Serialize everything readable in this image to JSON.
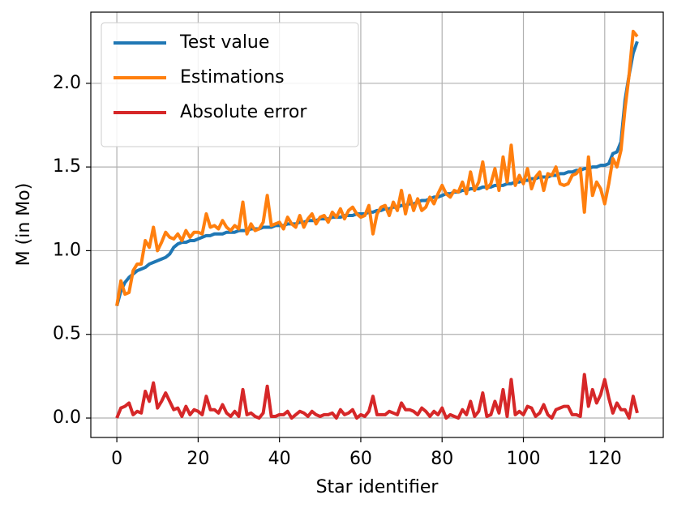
{
  "chart_data": {
    "type": "line",
    "xlabel": "Star identifier",
    "ylabel": "M (in Mo)",
    "x": [
      0,
      1,
      2,
      3,
      4,
      5,
      6,
      7,
      8,
      9,
      10,
      11,
      12,
      13,
      14,
      15,
      16,
      17,
      18,
      19,
      20,
      21,
      22,
      23,
      24,
      25,
      26,
      27,
      28,
      29,
      30,
      31,
      32,
      33,
      34,
      35,
      36,
      37,
      38,
      39,
      40,
      41,
      42,
      43,
      44,
      45,
      46,
      47,
      48,
      49,
      50,
      51,
      52,
      53,
      54,
      55,
      56,
      57,
      58,
      59,
      60,
      61,
      62,
      63,
      64,
      65,
      66,
      67,
      68,
      69,
      70,
      71,
      72,
      73,
      74,
      75,
      76,
      77,
      78,
      79,
      80,
      81,
      82,
      83,
      84,
      85,
      86,
      87,
      88,
      89,
      90,
      91,
      92,
      93,
      94,
      95,
      96,
      97,
      98,
      99,
      100,
      101,
      102,
      103,
      104,
      105,
      106,
      107,
      108,
      109,
      110,
      111,
      112,
      113,
      114,
      115,
      116,
      117,
      118,
      119,
      120,
      121,
      122,
      123,
      124,
      125,
      126,
      127,
      128
    ],
    "series": [
      {
        "name": "Test value",
        "color": "#1f77b4",
        "values": [
          0.67,
          0.76,
          0.81,
          0.84,
          0.86,
          0.88,
          0.89,
          0.9,
          0.92,
          0.93,
          0.94,
          0.95,
          0.96,
          0.98,
          1.02,
          1.04,
          1.05,
          1.05,
          1.06,
          1.06,
          1.07,
          1.08,
          1.09,
          1.09,
          1.1,
          1.1,
          1.1,
          1.11,
          1.11,
          1.11,
          1.12,
          1.12,
          1.12,
          1.13,
          1.13,
          1.13,
          1.14,
          1.14,
          1.14,
          1.15,
          1.15,
          1.15,
          1.16,
          1.16,
          1.16,
          1.17,
          1.17,
          1.18,
          1.18,
          1.18,
          1.19,
          1.19,
          1.19,
          1.2,
          1.2,
          1.2,
          1.21,
          1.21,
          1.21,
          1.22,
          1.22,
          1.22,
          1.23,
          1.23,
          1.24,
          1.24,
          1.25,
          1.25,
          1.26,
          1.26,
          1.27,
          1.27,
          1.28,
          1.28,
          1.29,
          1.3,
          1.3,
          1.31,
          1.32,
          1.32,
          1.33,
          1.34,
          1.34,
          1.35,
          1.35,
          1.36,
          1.36,
          1.37,
          1.37,
          1.37,
          1.38,
          1.38,
          1.38,
          1.39,
          1.39,
          1.39,
          1.4,
          1.4,
          1.41,
          1.41,
          1.42,
          1.42,
          1.43,
          1.43,
          1.44,
          1.44,
          1.44,
          1.45,
          1.45,
          1.46,
          1.46,
          1.47,
          1.47,
          1.48,
          1.48,
          1.49,
          1.49,
          1.5,
          1.5,
          1.51,
          1.51,
          1.52,
          1.58,
          1.59,
          1.65,
          1.9,
          2.05,
          2.18,
          2.25
        ]
      },
      {
        "name": "Estimations",
        "color": "#ff7f0e",
        "values": [
          0.67,
          0.82,
          0.74,
          0.75,
          0.88,
          0.92,
          0.92,
          1.06,
          1.02,
          1.14,
          1.0,
          1.05,
          1.11,
          1.08,
          1.07,
          1.1,
          1.06,
          1.12,
          1.08,
          1.11,
          1.11,
          1.1,
          1.22,
          1.14,
          1.15,
          1.13,
          1.18,
          1.14,
          1.12,
          1.15,
          1.13,
          1.29,
          1.1,
          1.16,
          1.12,
          1.13,
          1.17,
          1.33,
          1.15,
          1.16,
          1.17,
          1.13,
          1.2,
          1.16,
          1.14,
          1.21,
          1.14,
          1.19,
          1.22,
          1.16,
          1.2,
          1.21,
          1.17,
          1.23,
          1.2,
          1.25,
          1.19,
          1.24,
          1.26,
          1.22,
          1.2,
          1.21,
          1.27,
          1.1,
          1.22,
          1.26,
          1.27,
          1.21,
          1.29,
          1.24,
          1.36,
          1.22,
          1.33,
          1.24,
          1.31,
          1.24,
          1.26,
          1.32,
          1.28,
          1.34,
          1.39,
          1.34,
          1.32,
          1.36,
          1.35,
          1.41,
          1.34,
          1.47,
          1.36,
          1.41,
          1.53,
          1.37,
          1.4,
          1.49,
          1.36,
          1.56,
          1.41,
          1.63,
          1.39,
          1.45,
          1.4,
          1.49,
          1.37,
          1.44,
          1.47,
          1.36,
          1.46,
          1.45,
          1.5,
          1.4,
          1.39,
          1.4,
          1.45,
          1.46,
          1.49,
          1.23,
          1.56,
          1.33,
          1.41,
          1.37,
          1.28,
          1.4,
          1.55,
          1.5,
          1.6,
          1.85,
          2.05,
          2.31,
          2.28
        ]
      },
      {
        "name": "Absolute error",
        "color": "#d62728",
        "values": [
          0.0,
          0.06,
          0.07,
          0.09,
          0.02,
          0.04,
          0.03,
          0.16,
          0.1,
          0.21,
          0.06,
          0.1,
          0.15,
          0.1,
          0.05,
          0.06,
          0.01,
          0.07,
          0.02,
          0.05,
          0.04,
          0.02,
          0.13,
          0.05,
          0.05,
          0.03,
          0.08,
          0.03,
          0.01,
          0.04,
          0.01,
          0.17,
          0.02,
          0.03,
          0.01,
          0.0,
          0.03,
          0.19,
          0.01,
          0.01,
          0.02,
          0.02,
          0.04,
          0.0,
          0.02,
          0.04,
          0.03,
          0.01,
          0.04,
          0.02,
          0.01,
          0.02,
          0.02,
          0.03,
          0.0,
          0.05,
          0.02,
          0.03,
          0.05,
          0.0,
          0.02,
          0.01,
          0.04,
          0.13,
          0.02,
          0.02,
          0.02,
          0.04,
          0.03,
          0.02,
          0.09,
          0.05,
          0.05,
          0.04,
          0.02,
          0.06,
          0.04,
          0.01,
          0.04,
          0.02,
          0.06,
          0.0,
          0.02,
          0.01,
          0.0,
          0.05,
          0.02,
          0.1,
          0.01,
          0.04,
          0.15,
          0.01,
          0.02,
          0.1,
          0.03,
          0.17,
          0.01,
          0.23,
          0.02,
          0.04,
          0.02,
          0.07,
          0.06,
          0.01,
          0.03,
          0.08,
          0.02,
          0.0,
          0.05,
          0.06,
          0.07,
          0.07,
          0.02,
          0.02,
          0.01,
          0.26,
          0.07,
          0.17,
          0.09,
          0.14,
          0.23,
          0.12,
          0.03,
          0.09,
          0.05,
          0.05,
          0.0,
          0.13,
          0.03
        ]
      }
    ],
    "xlim": [
      -6.4,
      134.4
    ],
    "ylim": [
      -0.116,
      2.425
    ],
    "xticks": [
      0,
      20,
      40,
      60,
      80,
      100,
      120
    ],
    "yticks": [
      {
        "value": 0,
        "label": "0.0"
      },
      {
        "value": 0.5,
        "label": "0.5"
      },
      {
        "value": 1,
        "label": "1.0"
      },
      {
        "value": 1.5,
        "label": "1.5"
      },
      {
        "value": 2,
        "label": "2.0"
      }
    ],
    "grid": true,
    "legend": "upper left"
  }
}
